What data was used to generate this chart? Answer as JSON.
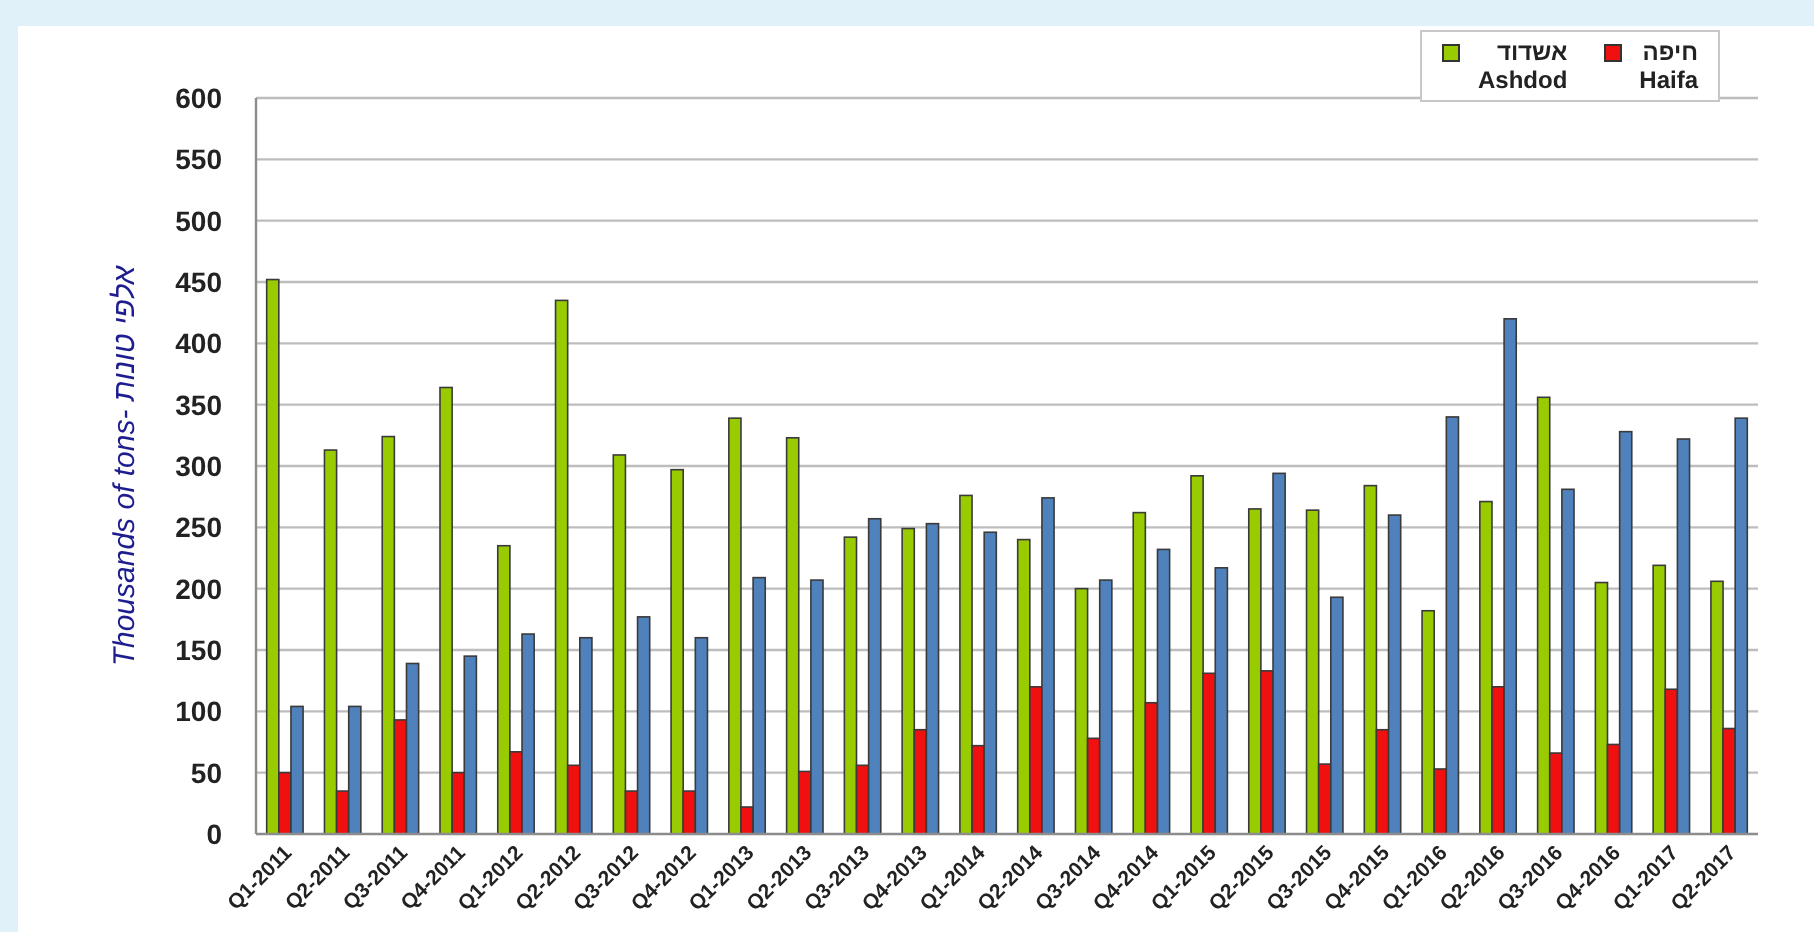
{
  "chart_data": {
    "type": "bar",
    "ylabel": "Thousands of tons- אלפי טונות",
    "categories": [
      "Q1-2011",
      "Q2-2011",
      "Q3-2011",
      "Q4-2011",
      "Q1-2012",
      "Q2-2012",
      "Q3-2012",
      "Q4-2012",
      "Q1-2013",
      "Q2-2013",
      "Q3-2013",
      "Q4-2013",
      "Q1-2014",
      "Q2-2014",
      "Q3-2014",
      "Q4-2014",
      "Q1-2015",
      "Q2-2015",
      "Q3-2015",
      "Q4-2015",
      "Q1-2016",
      "Q2-2016",
      "Q3-2016",
      "Q4-2016",
      "Q1-2017",
      "Q2-2017"
    ],
    "series": [
      {
        "name": "אשדוד Ashdod",
        "color": "#99cc00",
        "values": [
          452,
          313,
          324,
          364,
          235,
          435,
          309,
          297,
          339,
          323,
          242,
          249,
          276,
          240,
          200,
          262,
          292,
          265,
          264,
          284,
          182,
          271,
          356,
          205,
          219,
          206
        ]
      },
      {
        "name": "חיפה Haifa",
        "color": "#f01010",
        "values": [
          50,
          35,
          93,
          50,
          67,
          56,
          35,
          35,
          22,
          51,
          56,
          85,
          72,
          120,
          78,
          107,
          131,
          133,
          57,
          85,
          53,
          120,
          66,
          73,
          118,
          86
        ]
      },
      {
        "color": "#4f81bd",
        "values": [
          104,
          104,
          139,
          145,
          163,
          160,
          177,
          160,
          209,
          207,
          257,
          253,
          246,
          274,
          207,
          232,
          217,
          294,
          193,
          260,
          340,
          420,
          281,
          328,
          322,
          339
        ]
      }
    ],
    "ylim": [
      0,
      600
    ],
    "yticks": [
      0,
      50,
      100,
      150,
      200,
      250,
      300,
      350,
      400,
      450,
      500,
      550,
      600
    ],
    "grid": "y",
    "legend": "top right"
  }
}
